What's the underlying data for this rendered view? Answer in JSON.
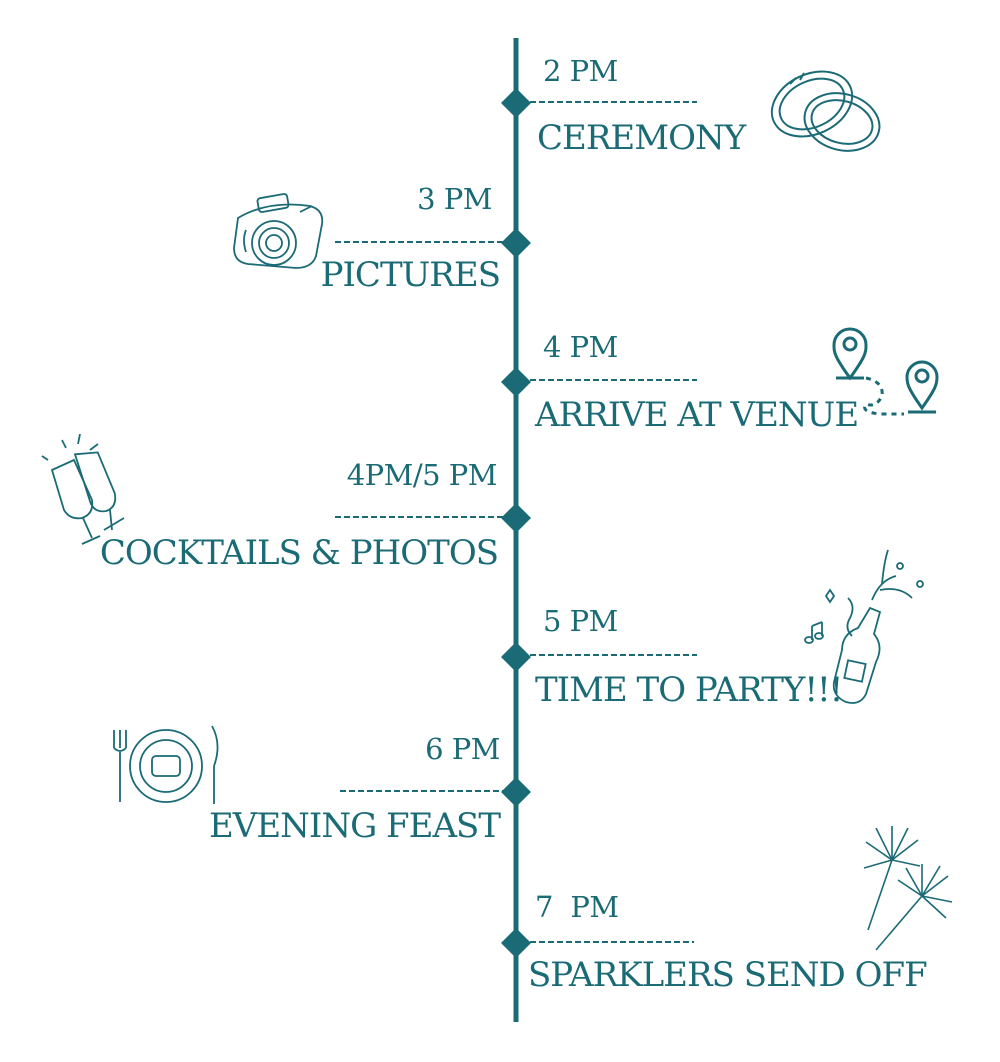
{
  "theme": {
    "accent": "#1b6b76",
    "background": "#ffffff"
  },
  "events": [
    {
      "time": "2 PM",
      "title": "CEREMONY",
      "side": "right",
      "icon": "wedding-rings-icon"
    },
    {
      "time": "3 PM",
      "title": "PICTURES",
      "side": "left",
      "icon": "camera-icon"
    },
    {
      "time": "4 PM",
      "title": "ARRIVE AT VENUE",
      "side": "right",
      "icon": "location-route-icon"
    },
    {
      "time": "4PM/5 PM",
      "title": "COCKTAILS & PHOTOS",
      "side": "left",
      "icon": "champagne-glasses-icon"
    },
    {
      "time": "5 PM",
      "title": "TIME TO PARTY!!!",
      "side": "right",
      "icon": "champagne-bottle-icon"
    },
    {
      "time": "6 PM",
      "title": "EVENING FEAST",
      "side": "left",
      "icon": "plate-cutlery-icon"
    },
    {
      "time": "7  PM",
      "title": "SPARKLERS SEND OFF",
      "side": "right",
      "icon": "sparklers-icon"
    }
  ]
}
